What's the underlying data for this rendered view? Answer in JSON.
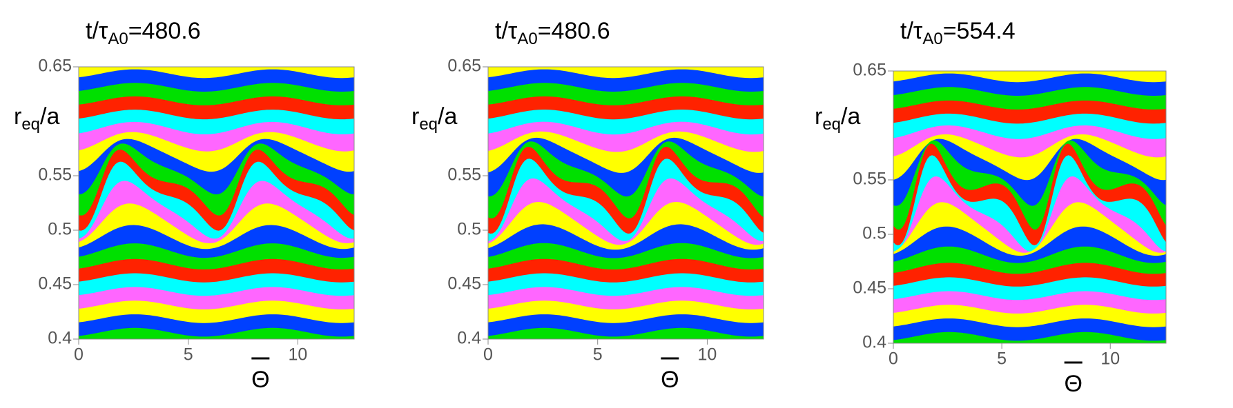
{
  "chart_data": [
    {
      "type": "contour",
      "title": [
        "t/τ",
        "A0",
        "=480.6"
      ],
      "xlabel": "Θ",
      "ylabel": [
        "r",
        "eq",
        "/a"
      ],
      "xlim": [
        0,
        12.57
      ],
      "ylim": [
        0.4,
        0.65
      ],
      "xticks": [
        0,
        5,
        10
      ],
      "yticks": [
        0.4,
        0.45,
        0.5,
        0.55,
        0.65
      ],
      "colors": [
        "#ff2200",
        "#00e000",
        "#0040ff",
        "#ffff00",
        "#ff66ff",
        "#00ffff"
      ]
    },
    {
      "type": "contour",
      "title": [
        "t/τ",
        "A0",
        "=480.6"
      ],
      "xlabel": "Θ",
      "ylabel": [
        "r",
        "eq",
        "/a"
      ],
      "xlim": [
        0,
        12.57
      ],
      "ylim": [
        0.4,
        0.65
      ],
      "xticks": [
        0,
        5,
        10
      ],
      "yticks": [
        0.4,
        0.45,
        0.5,
        0.55,
        0.65
      ],
      "colors": [
        "#ff2200",
        "#00e000",
        "#0040ff",
        "#ffff00",
        "#ff66ff",
        "#00ffff"
      ]
    },
    {
      "type": "contour",
      "title": [
        "t/τ",
        "A0",
        "=554.4"
      ],
      "xlabel": "Θ",
      "ylabel": [
        "r",
        "eq",
        "/a"
      ],
      "xlim": [
        0,
        12.57
      ],
      "ylim": [
        0.4,
        0.65
      ],
      "xticks": [
        0,
        5,
        10
      ],
      "yticks": [
        0.4,
        0.45,
        0.5,
        0.55,
        0.65
      ],
      "colors": [
        "#ff2200",
        "#00e000",
        "#0040ff",
        "#ffff00",
        "#ff66ff",
        "#00ffff"
      ]
    }
  ]
}
